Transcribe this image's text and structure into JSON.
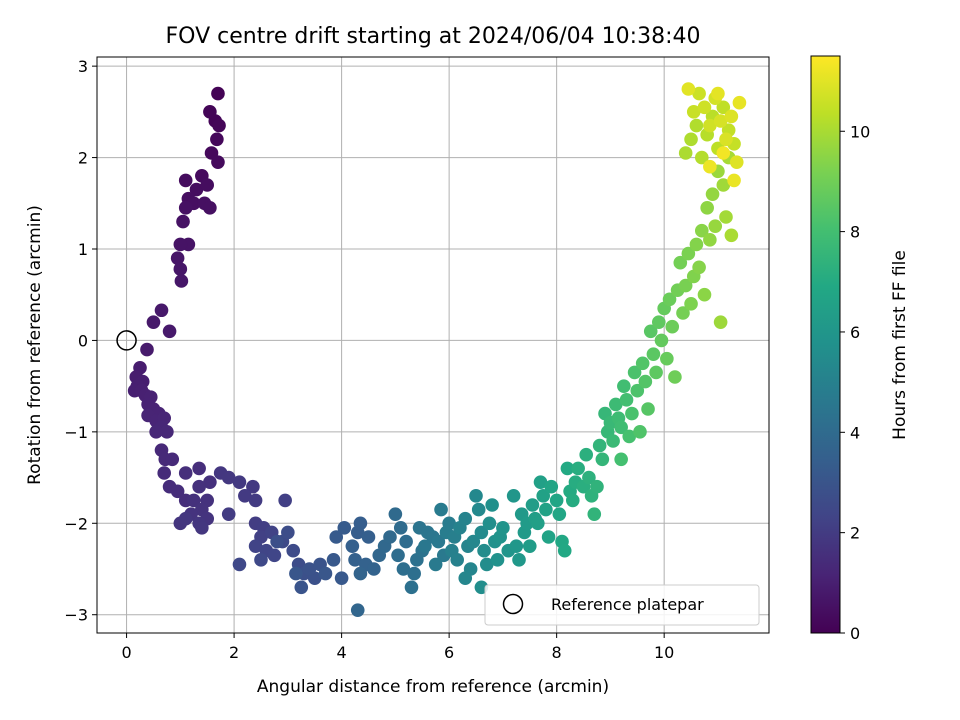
{
  "chart_data": {
    "type": "scatter",
    "title": "FOV centre drift starting at 2024/06/04 10:38:40",
    "xlabel": "Angular distance from reference (arcmin)",
    "ylabel": "Rotation from reference (arcmin)",
    "xlim": [
      -0.55,
      11.95
    ],
    "ylim": [
      -3.2,
      3.1
    ],
    "xticks": [
      0,
      2,
      4,
      6,
      8,
      10
    ],
    "yticks": [
      -3,
      -2,
      -1,
      0,
      1,
      2,
      3
    ],
    "xtick_labels": [
      "0",
      "2",
      "4",
      "6",
      "8",
      "10"
    ],
    "ytick_labels": [
      "−3",
      "−2",
      "−1",
      "0",
      "1",
      "2",
      "3"
    ],
    "grid": true,
    "colorbar": {
      "label": "Hours from first FF file",
      "range": [
        0,
        11.5
      ],
      "ticks": [
        0,
        2,
        4,
        6,
        8,
        10
      ],
      "tick_labels": [
        "0",
        "2",
        "4",
        "6",
        "8",
        "10"
      ],
      "colormap": "viridis"
    },
    "reference_point": {
      "x": 0,
      "y": 0,
      "legend_label": "Reference platepar"
    },
    "legend": {
      "placement": "lower right",
      "entries": [
        "Reference platepar"
      ]
    },
    "points": [
      [
        1.7,
        2.7,
        0.05
      ],
      [
        1.65,
        2.4,
        0.1
      ],
      [
        1.55,
        2.5,
        0.12
      ],
      [
        1.72,
        2.35,
        0.15
      ],
      [
        1.68,
        2.2,
        0.2
      ],
      [
        1.58,
        2.05,
        0.25
      ],
      [
        1.7,
        1.95,
        0.28
      ],
      [
        1.4,
        1.8,
        0.3
      ],
      [
        1.1,
        1.75,
        0.35
      ],
      [
        1.3,
        1.65,
        0.38
      ],
      [
        1.5,
        1.7,
        0.4
      ],
      [
        1.15,
        1.55,
        0.42
      ],
      [
        1.25,
        1.5,
        0.45
      ],
      [
        1.45,
        1.5,
        0.48
      ],
      [
        1.55,
        1.45,
        0.5
      ],
      [
        1.1,
        1.45,
        0.52
      ],
      [
        1.05,
        1.3,
        0.55
      ],
      [
        1.15,
        1.05,
        0.58
      ],
      [
        1.0,
        1.05,
        0.6
      ],
      [
        0.95,
        0.9,
        0.65
      ],
      [
        1.0,
        0.78,
        0.68
      ],
      [
        1.02,
        0.65,
        0.7
      ],
      [
        0.65,
        0.33,
        0.75
      ],
      [
        0.5,
        0.2,
        0.78
      ],
      [
        0.8,
        0.1,
        0.8
      ],
      [
        0.38,
        -0.1,
        0.85
      ],
      [
        0.25,
        -0.3,
        0.9
      ],
      [
        0.18,
        -0.4,
        0.92
      ],
      [
        0.3,
        -0.45,
        0.95
      ],
      [
        0.2,
        -0.5,
        0.98
      ],
      [
        0.15,
        -0.55,
        1.0
      ],
      [
        0.28,
        -0.55,
        1.02
      ],
      [
        0.35,
        -0.6,
        1.05
      ],
      [
        0.45,
        -0.62,
        1.08
      ],
      [
        0.4,
        -0.7,
        1.1
      ],
      [
        0.5,
        -0.75,
        1.12
      ],
      [
        0.6,
        -0.8,
        1.15
      ],
      [
        0.4,
        -0.82,
        1.18
      ],
      [
        0.55,
        -0.88,
        1.2
      ],
      [
        0.7,
        -0.85,
        1.22
      ],
      [
        0.65,
        -0.95,
        1.25
      ],
      [
        0.75,
        -1.0,
        1.28
      ],
      [
        0.55,
        -1.0,
        1.3
      ],
      [
        0.65,
        -1.2,
        1.32
      ],
      [
        0.72,
        -1.3,
        1.35
      ],
      [
        0.85,
        -1.3,
        1.38
      ],
      [
        0.7,
        -1.45,
        1.4
      ],
      [
        0.8,
        -1.6,
        1.45
      ],
      [
        0.95,
        -1.65,
        1.48
      ],
      [
        1.1,
        -1.75,
        1.5
      ],
      [
        1.35,
        -1.4,
        1.52
      ],
      [
        1.1,
        -1.45,
        1.55
      ],
      [
        1.55,
        -1.55,
        1.58
      ],
      [
        1.35,
        -1.6,
        1.6
      ],
      [
        1.25,
        -1.75,
        1.62
      ],
      [
        1.5,
        -1.75,
        1.65
      ],
      [
        1.4,
        -1.85,
        1.68
      ],
      [
        1.2,
        -1.9,
        1.7
      ],
      [
        1.5,
        -1.95,
        1.72
      ],
      [
        1.0,
        -2.0,
        1.75
      ],
      [
        1.1,
        -1.95,
        1.78
      ],
      [
        1.35,
        -2.0,
        1.8
      ],
      [
        1.4,
        -2.05,
        1.82
      ],
      [
        1.75,
        -1.45,
        1.85
      ],
      [
        1.9,
        -1.5,
        1.88
      ],
      [
        2.1,
        -1.55,
        1.9
      ],
      [
        2.35,
        -1.6,
        1.92
      ],
      [
        2.2,
        -1.7,
        1.95
      ],
      [
        2.4,
        -1.75,
        1.98
      ],
      [
        1.9,
        -1.9,
        2.0
      ],
      [
        2.4,
        -2.0,
        2.05
      ],
      [
        2.55,
        -2.05,
        2.1
      ],
      [
        2.95,
        -1.75,
        2.15
      ],
      [
        2.5,
        -2.15,
        2.2
      ],
      [
        2.7,
        -2.1,
        2.25
      ],
      [
        2.4,
        -2.25,
        2.3
      ],
      [
        2.6,
        -2.3,
        2.35
      ],
      [
        2.75,
        -2.35,
        2.4
      ],
      [
        2.1,
        -2.45,
        2.45
      ],
      [
        2.5,
        -2.4,
        2.5
      ],
      [
        2.9,
        -2.2,
        2.55
      ],
      [
        3.1,
        -2.3,
        2.6
      ],
      [
        3.2,
        -2.45,
        2.65
      ],
      [
        3.0,
        -2.1,
        2.7
      ],
      [
        2.8,
        -2.2,
        2.75
      ],
      [
        3.3,
        -2.55,
        2.8
      ],
      [
        3.5,
        -2.6,
        2.85
      ],
      [
        3.4,
        -2.5,
        2.9
      ],
      [
        3.6,
        -2.45,
        2.95
      ],
      [
        3.25,
        -2.7,
        3.0
      ],
      [
        3.15,
        -2.55,
        3.05
      ],
      [
        3.7,
        -2.55,
        3.1
      ],
      [
        3.85,
        -2.4,
        3.15
      ],
      [
        4.0,
        -2.6,
        3.2
      ],
      [
        3.9,
        -2.15,
        3.25
      ],
      [
        4.05,
        -2.05,
        3.3
      ],
      [
        4.3,
        -2.1,
        3.35
      ],
      [
        4.35,
        -2.0,
        3.4
      ],
      [
        4.5,
        -2.15,
        3.45
      ],
      [
        4.2,
        -2.25,
        3.5
      ],
      [
        4.25,
        -2.4,
        3.55
      ],
      [
        4.45,
        -2.45,
        3.6
      ],
      [
        4.6,
        -2.5,
        3.65
      ],
      [
        4.35,
        -2.55,
        3.7
      ],
      [
        4.3,
        -2.95,
        3.75
      ],
      [
        4.7,
        -2.35,
        3.8
      ],
      [
        4.8,
        -2.25,
        3.85
      ],
      [
        4.9,
        -2.15,
        3.9
      ],
      [
        5.0,
        -1.9,
        3.95
      ],
      [
        5.1,
        -2.05,
        4.0
      ],
      [
        5.2,
        -2.2,
        4.05
      ],
      [
        5.05,
        -2.35,
        4.1
      ],
      [
        5.15,
        -2.5,
        4.15
      ],
      [
        5.35,
        -2.55,
        4.2
      ],
      [
        5.3,
        -2.7,
        4.25
      ],
      [
        5.4,
        -2.4,
        4.3
      ],
      [
        5.5,
        -2.3,
        4.35
      ],
      [
        5.45,
        -2.05,
        4.4
      ],
      [
        5.6,
        -2.1,
        4.45
      ],
      [
        5.7,
        -2.15,
        4.5
      ],
      [
        5.55,
        -2.25,
        4.55
      ],
      [
        5.8,
        -2.2,
        4.6
      ],
      [
        5.9,
        -2.35,
        4.65
      ],
      [
        5.75,
        -2.45,
        4.7
      ],
      [
        5.85,
        -1.85,
        4.75
      ],
      [
        6.0,
        -2.0,
        4.8
      ],
      [
        5.95,
        -2.1,
        4.85
      ],
      [
        6.1,
        -2.15,
        4.9
      ],
      [
        6.05,
        -2.3,
        4.95
      ],
      [
        6.15,
        -2.4,
        5.0
      ],
      [
        6.2,
        -2.05,
        5.05
      ],
      [
        6.3,
        -1.95,
        5.1
      ],
      [
        6.35,
        -2.25,
        5.15
      ],
      [
        6.4,
        -2.5,
        5.2
      ],
      [
        6.3,
        -2.6,
        5.25
      ],
      [
        6.45,
        -2.2,
        5.3
      ],
      [
        6.5,
        -1.7,
        5.35
      ],
      [
        6.55,
        -1.85,
        5.4
      ],
      [
        6.6,
        -2.1,
        5.45
      ],
      [
        6.65,
        -2.3,
        5.5
      ],
      [
        6.7,
        -2.45,
        5.55
      ],
      [
        6.6,
        -2.7,
        5.6
      ],
      [
        6.75,
        -2.0,
        5.65
      ],
      [
        6.8,
        -1.8,
        5.7
      ],
      [
        6.85,
        -2.2,
        5.75
      ],
      [
        6.9,
        -2.4,
        5.8
      ],
      [
        6.95,
        -2.15,
        5.85
      ],
      [
        7.0,
        -2.05,
        5.9
      ],
      [
        7.1,
        -2.3,
        5.95
      ],
      [
        7.2,
        -1.7,
        6.0
      ],
      [
        7.25,
        -2.25,
        6.05
      ],
      [
        7.3,
        -2.4,
        6.1
      ],
      [
        7.35,
        -1.9,
        6.15
      ],
      [
        7.4,
        -2.1,
        6.2
      ],
      [
        7.45,
        -2.0,
        6.25
      ],
      [
        7.5,
        -2.25,
        6.3
      ],
      [
        7.55,
        -1.8,
        6.35
      ],
      [
        7.6,
        -1.95,
        6.4
      ],
      [
        7.65,
        -2.0,
        6.45
      ],
      [
        7.7,
        -1.55,
        6.5
      ],
      [
        7.75,
        -1.7,
        6.55
      ],
      [
        7.8,
        -1.85,
        6.6
      ],
      [
        7.85,
        -2.15,
        6.65
      ],
      [
        7.9,
        -1.6,
        6.7
      ],
      [
        8.0,
        -1.75,
        6.75
      ],
      [
        8.05,
        -1.9,
        6.8
      ],
      [
        8.1,
        -2.2,
        6.85
      ],
      [
        8.15,
        -2.3,
        6.9
      ],
      [
        8.2,
        -1.4,
        6.95
      ],
      [
        8.25,
        -1.65,
        7.0
      ],
      [
        8.3,
        -1.75,
        7.05
      ],
      [
        8.35,
        -1.55,
        7.1
      ],
      [
        8.4,
        -1.4,
        7.15
      ],
      [
        8.5,
        -1.6,
        7.2
      ],
      [
        8.55,
        -1.25,
        7.25
      ],
      [
        8.6,
        -1.5,
        7.3
      ],
      [
        8.65,
        -1.7,
        7.35
      ],
      [
        8.75,
        -1.6,
        7.4
      ],
      [
        8.7,
        -1.9,
        7.45
      ],
      [
        8.8,
        -1.15,
        7.5
      ],
      [
        8.85,
        -1.3,
        7.55
      ],
      [
        8.9,
        -0.8,
        7.6
      ],
      [
        8.95,
        -1.0,
        7.65
      ],
      [
        9.0,
        -0.9,
        7.7
      ],
      [
        9.05,
        -1.1,
        7.75
      ],
      [
        9.1,
        -0.7,
        7.8
      ],
      [
        9.15,
        -0.85,
        7.85
      ],
      [
        9.2,
        -0.95,
        7.9
      ],
      [
        9.25,
        -0.5,
        7.95
      ],
      [
        9.3,
        -0.65,
        8.0
      ],
      [
        9.2,
        -1.3,
        8.05
      ],
      [
        9.35,
        -1.05,
        8.1
      ],
      [
        9.4,
        -0.8,
        8.15
      ],
      [
        9.45,
        -0.35,
        8.2
      ],
      [
        9.5,
        -0.55,
        8.25
      ],
      [
        9.55,
        -1.0,
        8.3
      ],
      [
        9.6,
        -0.25,
        8.35
      ],
      [
        9.65,
        -0.45,
        8.4
      ],
      [
        9.7,
        -0.75,
        8.45
      ],
      [
        9.75,
        0.1,
        8.5
      ],
      [
        9.8,
        -0.15,
        8.55
      ],
      [
        9.85,
        -0.35,
        8.6
      ],
      [
        9.9,
        0.2,
        8.65
      ],
      [
        9.95,
        0.0,
        8.7
      ],
      [
        10.0,
        0.35,
        8.75
      ],
      [
        10.05,
        -0.2,
        8.8
      ],
      [
        10.1,
        0.45,
        8.85
      ],
      [
        10.15,
        0.15,
        8.9
      ],
      [
        10.2,
        -0.4,
        8.95
      ],
      [
        10.25,
        0.55,
        9.0
      ],
      [
        10.3,
        0.85,
        9.05
      ],
      [
        10.35,
        0.3,
        9.1
      ],
      [
        10.4,
        0.6,
        9.15
      ],
      [
        10.45,
        0.95,
        9.2
      ],
      [
        10.5,
        0.4,
        9.25
      ],
      [
        10.55,
        0.7,
        9.3
      ],
      [
        10.6,
        1.05,
        9.35
      ],
      [
        10.65,
        0.8,
        9.4
      ],
      [
        10.7,
        1.2,
        9.45
      ],
      [
        10.75,
        0.5,
        9.5
      ],
      [
        10.8,
        1.45,
        9.55
      ],
      [
        10.85,
        1.1,
        9.6
      ],
      [
        10.9,
        1.6,
        9.65
      ],
      [
        10.95,
        1.25,
        9.7
      ],
      [
        11.0,
        1.85,
        9.75
      ],
      [
        11.05,
        0.2,
        9.8
      ],
      [
        11.1,
        1.7,
        9.85
      ],
      [
        11.15,
        1.35,
        9.9
      ],
      [
        11.2,
        2.0,
        9.95
      ],
      [
        11.25,
        1.15,
        10.0
      ],
      [
        10.4,
        2.05,
        10.05
      ],
      [
        10.5,
        2.2,
        10.1
      ],
      [
        10.6,
        2.35,
        10.15
      ],
      [
        10.7,
        2.0,
        10.2
      ],
      [
        10.8,
        2.25,
        10.25
      ],
      [
        10.9,
        2.45,
        10.3
      ],
      [
        11.0,
        2.1,
        10.35
      ],
      [
        11.1,
        2.55,
        10.4
      ],
      [
        11.2,
        2.3,
        10.45
      ],
      [
        11.3,
        2.15,
        10.5
      ],
      [
        10.55,
        2.5,
        10.55
      ],
      [
        10.65,
        2.7,
        10.6
      ],
      [
        10.75,
        2.55,
        10.65
      ],
      [
        10.85,
        2.35,
        10.7
      ],
      [
        10.95,
        2.65,
        10.75
      ],
      [
        11.05,
        2.4,
        10.8
      ],
      [
        11.15,
        2.2,
        10.85
      ],
      [
        11.25,
        2.45,
        10.9
      ],
      [
        11.35,
        1.95,
        10.95
      ],
      [
        10.45,
        2.75,
        11.0
      ],
      [
        11.0,
        2.7,
        11.05
      ],
      [
        11.4,
        2.6,
        11.1
      ],
      [
        11.3,
        1.75,
        11.15
      ],
      [
        10.85,
        1.9,
        11.2
      ],
      [
        11.1,
        2.05,
        11.3
      ]
    ]
  }
}
